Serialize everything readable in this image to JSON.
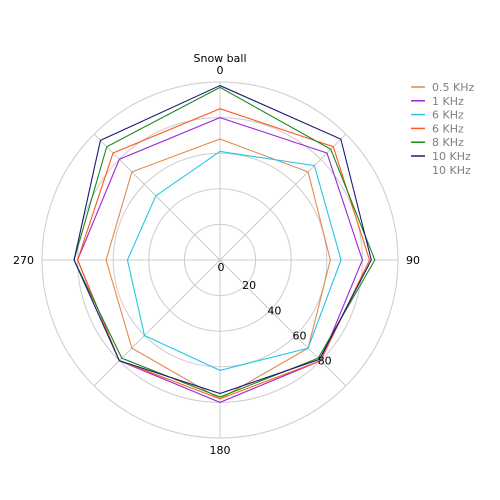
{
  "chart_data": {
    "type": "radar",
    "title": "Snow ball",
    "r_range": [
      0,
      100
    ],
    "r_ticks": [
      "20",
      "40",
      "60",
      "80"
    ],
    "theta_ticks": [
      {
        "angle": 0,
        "label": "0"
      },
      {
        "angle": 90,
        "label": "90"
      },
      {
        "angle": 180,
        "label": "180"
      },
      {
        "angle": 270,
        "label": "270"
      }
    ],
    "angles": [
      0,
      45,
      90,
      135,
      180,
      225,
      270,
      315
    ],
    "grid": true,
    "legend_position": "top-right",
    "series": [
      {
        "name": "0.5 KHz",
        "color": "#e08a4c",
        "values": [
          68,
          70,
          62,
          70,
          78,
          70,
          64,
          70
        ]
      },
      {
        "name": "1 KHz",
        "color": "#9b26d6",
        "values": [
          80,
          85,
          80,
          80,
          80,
          80,
          80,
          80
        ]
      },
      {
        "name": "6 KHz",
        "color": "#25c7e8",
        "values": [
          61,
          75,
          68,
          70,
          62,
          60,
          52,
          51
        ]
      },
      {
        "name": "6 KHz",
        "color": "#ff5a1f",
        "values": [
          85,
          90,
          84,
          80,
          78,
          80,
          80,
          85
        ]
      },
      {
        "name": "8 KHz",
        "color": "#1a8a1a",
        "values": [
          97,
          88,
          87,
          78,
          77,
          78,
          82,
          90
        ]
      },
      {
        "name": "10 KHz",
        "color": "#1a1a7a",
        "values": [
          98,
          96,
          85,
          79,
          75,
          80,
          82,
          95
        ]
      }
    ],
    "legend_extra": "10 KHz"
  }
}
